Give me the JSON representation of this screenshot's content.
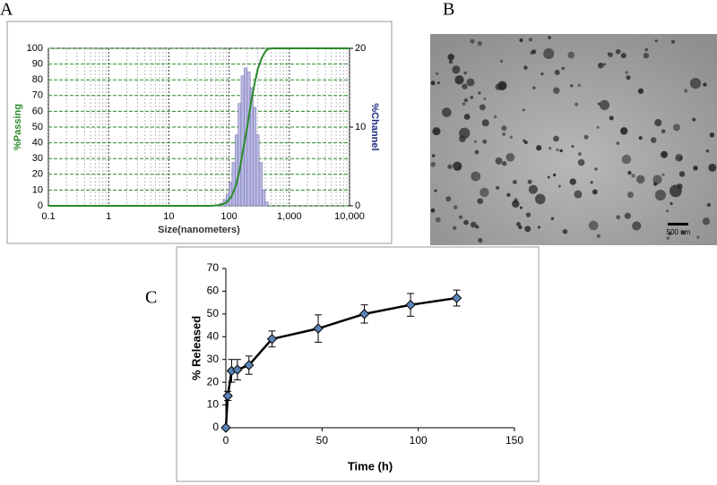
{
  "chart_data": [
    {
      "type": "histogram",
      "panel_label": "A",
      "xlabel": "Size(nanometers)",
      "ylabel": "%Passing",
      "y2label": "%Channel",
      "log_x": true,
      "xlim": [
        0.1,
        10000
      ],
      "xticks": [
        0.1,
        1,
        10,
        100,
        {
          "value": 1000,
          "label": "1,000"
        },
        {
          "value": 10000,
          "label": "10,000"
        }
      ],
      "ylim": [
        0,
        100
      ],
      "yticks": [
        0,
        10,
        20,
        30,
        40,
        50,
        60,
        70,
        80,
        90,
        100
      ],
      "y2lim": [
        0,
        20
      ],
      "y2ticks": [
        0,
        10,
        20
      ],
      "grid": true,
      "bins": [
        70,
        79,
        89,
        100,
        112,
        126,
        141,
        158,
        178,
        200,
        224,
        251,
        282,
        316,
        355,
        398,
        447
      ],
      "counts": [
        0.3,
        0.8,
        1.5,
        3,
        5.5,
        9,
        13,
        16.5,
        17.5,
        17,
        15,
        12.5,
        9,
        5.5,
        2,
        0.5
      ],
      "bar_color": "#b9b9e3",
      "line": {
        "x": [
          0.1,
          10,
          50,
          70,
          90,
          110,
          130,
          150,
          170,
          200,
          230,
          260,
          300,
          350,
          400,
          450,
          500,
          1000,
          10000
        ],
        "values": [
          0,
          0,
          0,
          0.5,
          2,
          6,
          13,
          23,
          35,
          50,
          65,
          76,
          87,
          94,
          98,
          99.7,
          100,
          100,
          100
        ],
        "color": "#2a8a2a"
      }
    },
    {
      "type": "line",
      "panel_label": "C",
      "xlabel": "Time (h)",
      "ylabel": "% Released",
      "x": [
        0,
        1,
        3,
        6,
        12,
        24,
        48,
        72,
        96,
        120
      ],
      "values": [
        0,
        14,
        25,
        25.5,
        27.5,
        39,
        43.6,
        50,
        54,
        57
      ],
      "errors": [
        0,
        2,
        5,
        4.5,
        4,
        3.5,
        6,
        4,
        5,
        3.5
      ],
      "xlim": [
        0,
        150
      ],
      "xticks": [
        0,
        50,
        100,
        150
      ],
      "ylim": [
        0,
        70
      ],
      "yticks": [
        0,
        10,
        20,
        30,
        40,
        50,
        60,
        70
      ],
      "color": "#000000",
      "marker_color": "#5b83b8"
    }
  ],
  "image": {
    "panel_label": "B",
    "scale_bar": "500 nm"
  }
}
